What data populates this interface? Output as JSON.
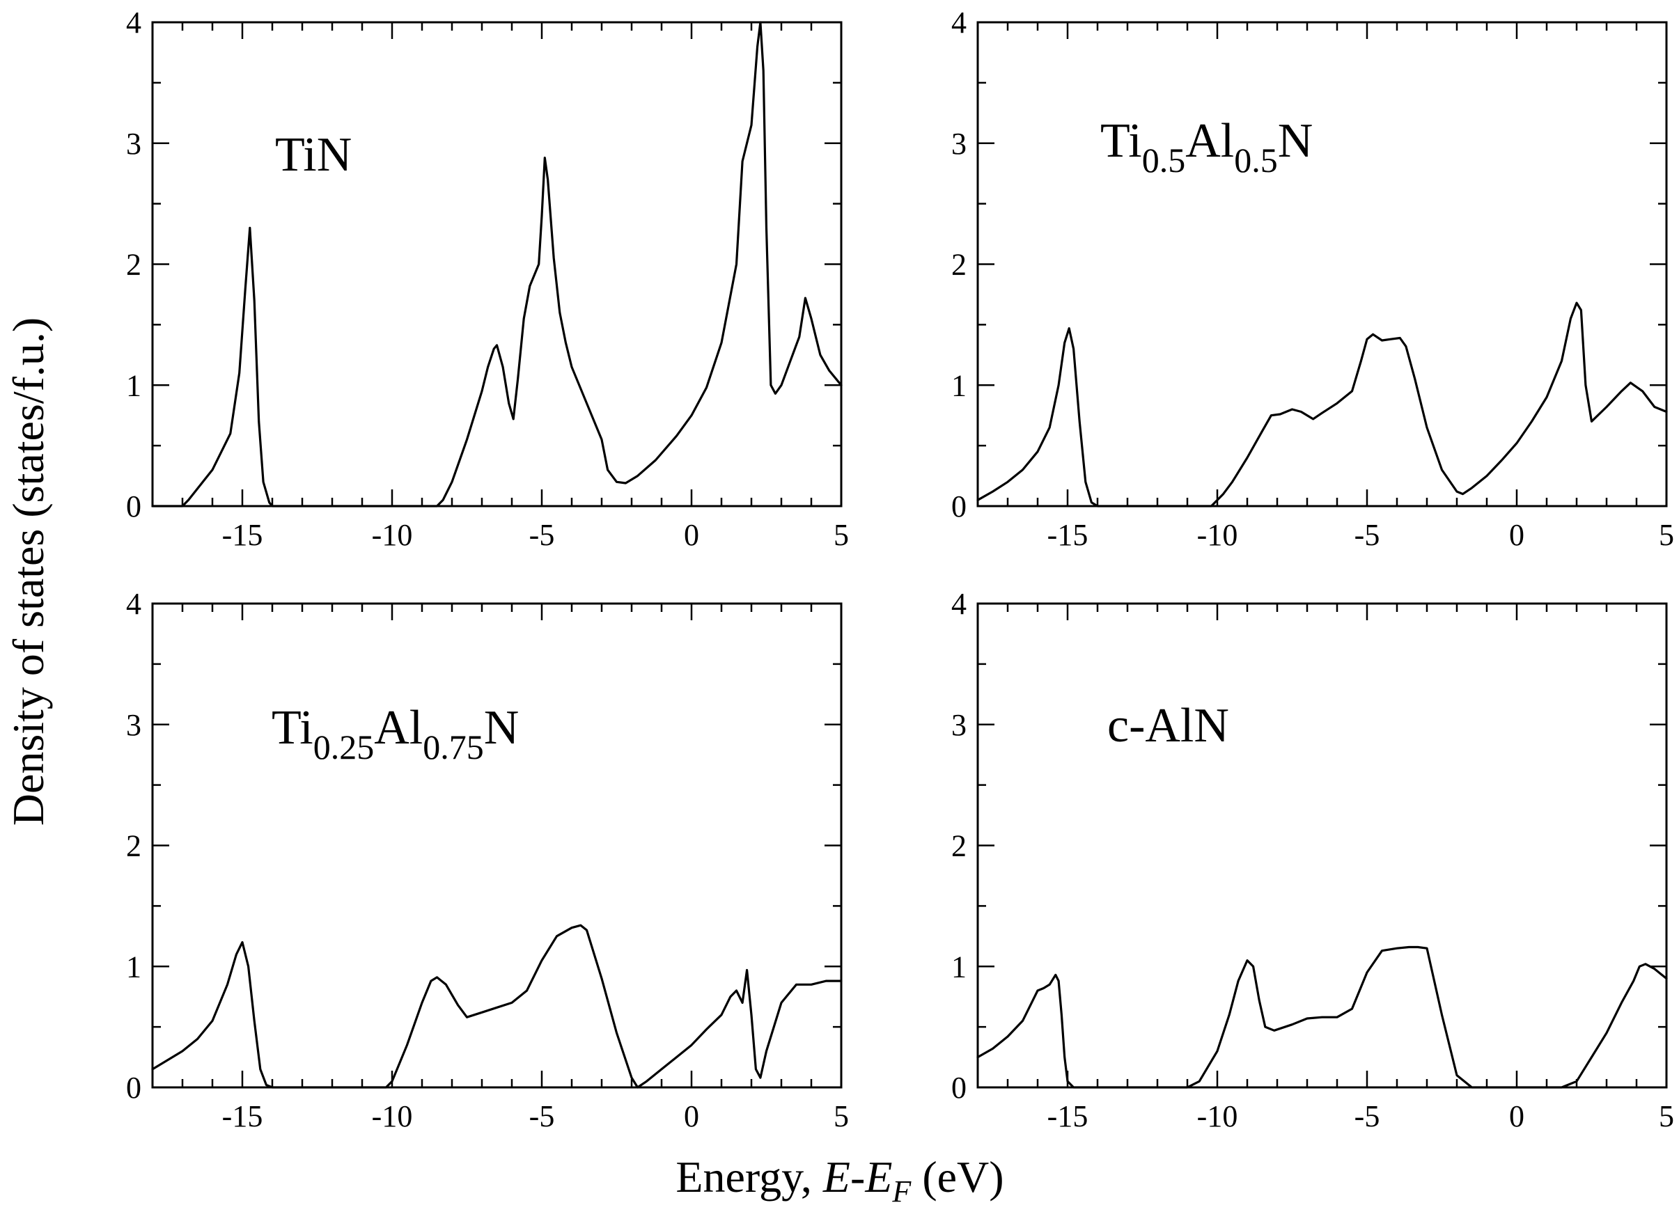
{
  "figure": {
    "xlabel_prefix": "Energy,",
    "xlabel_math_E": "E",
    "xlabel_math_dash": "-",
    "xlabel_math_EF": "E",
    "xlabel_math_F": "F",
    "xlabel_unit": "(eV)",
    "ylabel": "Density of states (states/f.u.)"
  },
  "chart_data": [
    {
      "type": "line",
      "title": "TiN",
      "title_parts": {
        "base": "TiN",
        "sub1": "",
        "mid": "",
        "sub2": "",
        "end": ""
      },
      "xlabel": "Energy, E-E_F (eV)",
      "ylabel": "Density of states (states/f.u.)",
      "xlim": [
        -18,
        5
      ],
      "ylim": [
        0,
        4
      ],
      "xticks": [
        -15,
        -10,
        -5,
        0,
        5
      ],
      "yticks": [
        0,
        1,
        2,
        3,
        4
      ],
      "series": [
        {
          "name": "TiN",
          "x": [
            -18,
            -17,
            -16.8,
            -16,
            -15.4,
            -15.1,
            -14.9,
            -14.75,
            -14.6,
            -14.45,
            -14.3,
            -14.1,
            -14,
            -13,
            -10,
            -8.5,
            -8.3,
            -8,
            -7.5,
            -7,
            -6.8,
            -6.6,
            -6.5,
            -6.3,
            -6.1,
            -5.95,
            -5.8,
            -5.6,
            -5.4,
            -5.1,
            -5.0,
            -4.9,
            -4.8,
            -4.6,
            -4.4,
            -4.2,
            -4.0,
            -3.5,
            -3.0,
            -2.8,
            -2.5,
            -2.2,
            -1.8,
            -1.2,
            -0.5,
            0,
            0.5,
            1.0,
            1.5,
            1.7,
            2.0,
            2.2,
            2.3,
            2.4,
            2.5,
            2.65,
            2.8,
            3.0,
            3.3,
            3.6,
            3.8,
            4.0,
            4.3,
            4.6,
            5.0
          ],
          "y": [
            0,
            0,
            0.05,
            0.3,
            0.6,
            1.1,
            1.8,
            2.3,
            1.7,
            0.7,
            0.2,
            0.03,
            0,
            0,
            0,
            0,
            0.05,
            0.2,
            0.55,
            0.95,
            1.15,
            1.3,
            1.33,
            1.15,
            0.85,
            0.72,
            1.05,
            1.55,
            1.82,
            2.0,
            2.4,
            2.88,
            2.7,
            2.05,
            1.6,
            1.35,
            1.15,
            0.85,
            0.55,
            0.3,
            0.2,
            0.19,
            0.25,
            0.38,
            0.58,
            0.75,
            0.98,
            1.35,
            2.0,
            2.85,
            3.15,
            3.8,
            4.0,
            3.6,
            2.3,
            1.0,
            0.93,
            1.0,
            1.2,
            1.4,
            1.72,
            1.55,
            1.25,
            1.12,
            1.0
          ]
        }
      ]
    },
    {
      "type": "line",
      "title": "Ti0.5Al0.5N",
      "title_parts": {
        "base": "Ti",
        "sub1": "0.5",
        "mid": "Al",
        "sub2": "0.5",
        "end": "N"
      },
      "xlabel": "Energy, E-E_F (eV)",
      "ylabel": "Density of states (states/f.u.)",
      "xlim": [
        -18,
        5
      ],
      "ylim": [
        0,
        4
      ],
      "xticks": [
        -15,
        -10,
        -5,
        0,
        5
      ],
      "yticks": [
        0,
        1,
        2,
        3,
        4
      ],
      "series": [
        {
          "name": "Ti0.5Al0.5N",
          "x": [
            -18,
            -17.5,
            -17,
            -16.5,
            -16,
            -15.6,
            -15.3,
            -15.1,
            -14.95,
            -14.8,
            -14.6,
            -14.4,
            -14.2,
            -14,
            -12,
            -10.2,
            -9.8,
            -9.5,
            -9,
            -8.5,
            -8.2,
            -7.9,
            -7.5,
            -7.2,
            -6.8,
            -6.5,
            -6.0,
            -5.5,
            -5.2,
            -5.0,
            -4.8,
            -4.5,
            -4.2,
            -3.9,
            -3.7,
            -3.4,
            -3.0,
            -2.5,
            -2.0,
            -1.8,
            -1.5,
            -1.0,
            -0.5,
            0,
            0.5,
            1.0,
            1.5,
            1.8,
            2.0,
            2.15,
            2.3,
            2.5,
            3.0,
            3.5,
            3.8,
            4.2,
            4.6,
            5.0
          ],
          "y": [
            0.05,
            0.12,
            0.2,
            0.3,
            0.45,
            0.65,
            1.0,
            1.35,
            1.47,
            1.3,
            0.7,
            0.2,
            0.03,
            0,
            0,
            0,
            0.1,
            0.2,
            0.4,
            0.62,
            0.75,
            0.76,
            0.8,
            0.78,
            0.72,
            0.77,
            0.85,
            0.95,
            1.2,
            1.38,
            1.42,
            1.37,
            1.38,
            1.39,
            1.32,
            1.05,
            0.65,
            0.3,
            0.12,
            0.1,
            0.15,
            0.25,
            0.38,
            0.52,
            0.7,
            0.9,
            1.2,
            1.55,
            1.68,
            1.62,
            1.0,
            0.7,
            0.82,
            0.95,
            1.02,
            0.95,
            0.82,
            0.78
          ]
        }
      ]
    },
    {
      "type": "line",
      "title": "Ti0.25Al0.75N",
      "title_parts": {
        "base": "Ti",
        "sub1": "0.25",
        "mid": "Al",
        "sub2": "0.75",
        "end": "N"
      },
      "xlabel": "Energy, E-E_F (eV)",
      "ylabel": "Density of states (states/f.u.)",
      "xlim": [
        -18,
        5
      ],
      "ylim": [
        0,
        4
      ],
      "xticks": [
        -15,
        -10,
        -5,
        0,
        5
      ],
      "yticks": [
        0,
        1,
        2,
        3,
        4
      ],
      "series": [
        {
          "name": "Ti0.25Al0.75N",
          "x": [
            -18,
            -17,
            -16.5,
            -16,
            -15.5,
            -15.2,
            -15.0,
            -14.8,
            -14.6,
            -14.4,
            -14.2,
            -14,
            -12,
            -10.2,
            -10.0,
            -9.5,
            -9.0,
            -8.7,
            -8.5,
            -8.2,
            -7.8,
            -7.5,
            -7.0,
            -6.5,
            -6.0,
            -5.5,
            -5.0,
            -4.5,
            -4.0,
            -3.7,
            -3.5,
            -3.0,
            -2.5,
            -2.0,
            -1.8,
            -1.5,
            -1.0,
            -0.5,
            0,
            0.5,
            1.0,
            1.3,
            1.5,
            1.7,
            1.85,
            2.0,
            2.15,
            2.3,
            2.5,
            3.0,
            3.5,
            4.0,
            4.5,
            5.0
          ],
          "y": [
            0.15,
            0.3,
            0.4,
            0.55,
            0.85,
            1.1,
            1.2,
            1.0,
            0.55,
            0.15,
            0.02,
            0,
            0,
            0,
            0.05,
            0.35,
            0.7,
            0.88,
            0.91,
            0.85,
            0.68,
            0.58,
            0.62,
            0.66,
            0.7,
            0.8,
            1.05,
            1.25,
            1.32,
            1.34,
            1.3,
            0.9,
            0.45,
            0.08,
            0,
            0.05,
            0.15,
            0.25,
            0.35,
            0.48,
            0.6,
            0.75,
            0.8,
            0.7,
            0.97,
            0.6,
            0.15,
            0.08,
            0.3,
            0.7,
            0.85,
            0.85,
            0.88,
            0.88
          ]
        }
      ]
    },
    {
      "type": "line",
      "title": "c-AlN",
      "title_parts": {
        "base": "c-AlN",
        "sub1": "",
        "mid": "",
        "sub2": "",
        "end": ""
      },
      "xlabel": "Energy, E-E_F (eV)",
      "ylabel": "Density of states (states/f.u.)",
      "xlim": [
        -18,
        5
      ],
      "ylim": [
        0,
        4
      ],
      "xticks": [
        -15,
        -10,
        -5,
        0,
        5
      ],
      "yticks": [
        0,
        1,
        2,
        3,
        4
      ],
      "series": [
        {
          "name": "c-AlN",
          "x": [
            -18,
            -17.5,
            -17,
            -16.5,
            -16.2,
            -16.0,
            -15.8,
            -15.6,
            -15.4,
            -15.3,
            -15.2,
            -15.1,
            -15.0,
            -14.8,
            -14.5,
            -12,
            -11,
            -10.6,
            -10.0,
            -9.6,
            -9.3,
            -9.0,
            -8.8,
            -8.6,
            -8.4,
            -8.1,
            -7.5,
            -7.0,
            -6.5,
            -6.0,
            -5.5,
            -5.0,
            -4.5,
            -4.0,
            -3.6,
            -3.3,
            -3.0,
            -2.5,
            -2.0,
            -1.5,
            1.5,
            2.0,
            2.5,
            3.0,
            3.5,
            3.9,
            4.1,
            4.3,
            4.6,
            4.8,
            5.0
          ],
          "y": [
            0.25,
            0.32,
            0.42,
            0.55,
            0.7,
            0.8,
            0.82,
            0.85,
            0.93,
            0.88,
            0.6,
            0.25,
            0.05,
            0,
            0,
            0,
            0,
            0.05,
            0.3,
            0.6,
            0.88,
            1.05,
            1.0,
            0.72,
            0.5,
            0.47,
            0.52,
            0.57,
            0.58,
            0.58,
            0.65,
            0.95,
            1.13,
            1.15,
            1.16,
            1.16,
            1.15,
            0.6,
            0.1,
            0,
            0,
            0.05,
            0.25,
            0.45,
            0.7,
            0.88,
            1.0,
            1.02,
            0.98,
            0.94,
            0.9
          ]
        }
      ]
    }
  ]
}
